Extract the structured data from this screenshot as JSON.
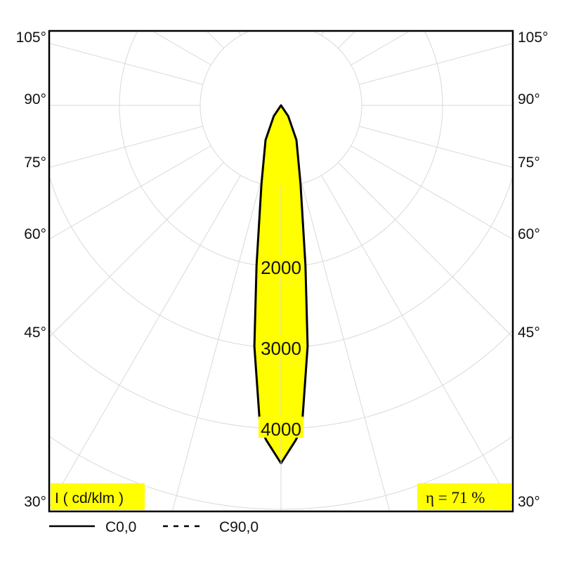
{
  "chart_data": {
    "type": "polar",
    "unit_label": "I ( cd/klm )",
    "efficiency_label": "η = 71 %",
    "angle_labels": [
      "105°",
      "90°",
      "75°",
      "60°",
      "45°",
      "30°"
    ],
    "radial_tick_labels": [
      "2000",
      "3000",
      "4000"
    ],
    "radial_step": 1000,
    "angle_step_deg": 15,
    "grid": true,
    "legend_placement": "bottom-left",
    "legend": [
      {
        "name": "C0,0",
        "style": "solid"
      },
      {
        "name": "C90,0",
        "style": "dashed"
      }
    ],
    "series": [
      {
        "name": "C0,0",
        "gamma_deg": [
          0,
          2.5,
          3.7,
          6.3,
          8.7,
          14,
          24,
          34,
          45
        ],
        "intensity": [
          4430,
          4150,
          4000,
          3000,
          2000,
          1000,
          470,
          160,
          0
        ]
      }
    ],
    "colors": {
      "fill": "#ffff00",
      "line": "#000000",
      "grid": "#d9d9d9",
      "label_bg": "#ffff00"
    }
  }
}
